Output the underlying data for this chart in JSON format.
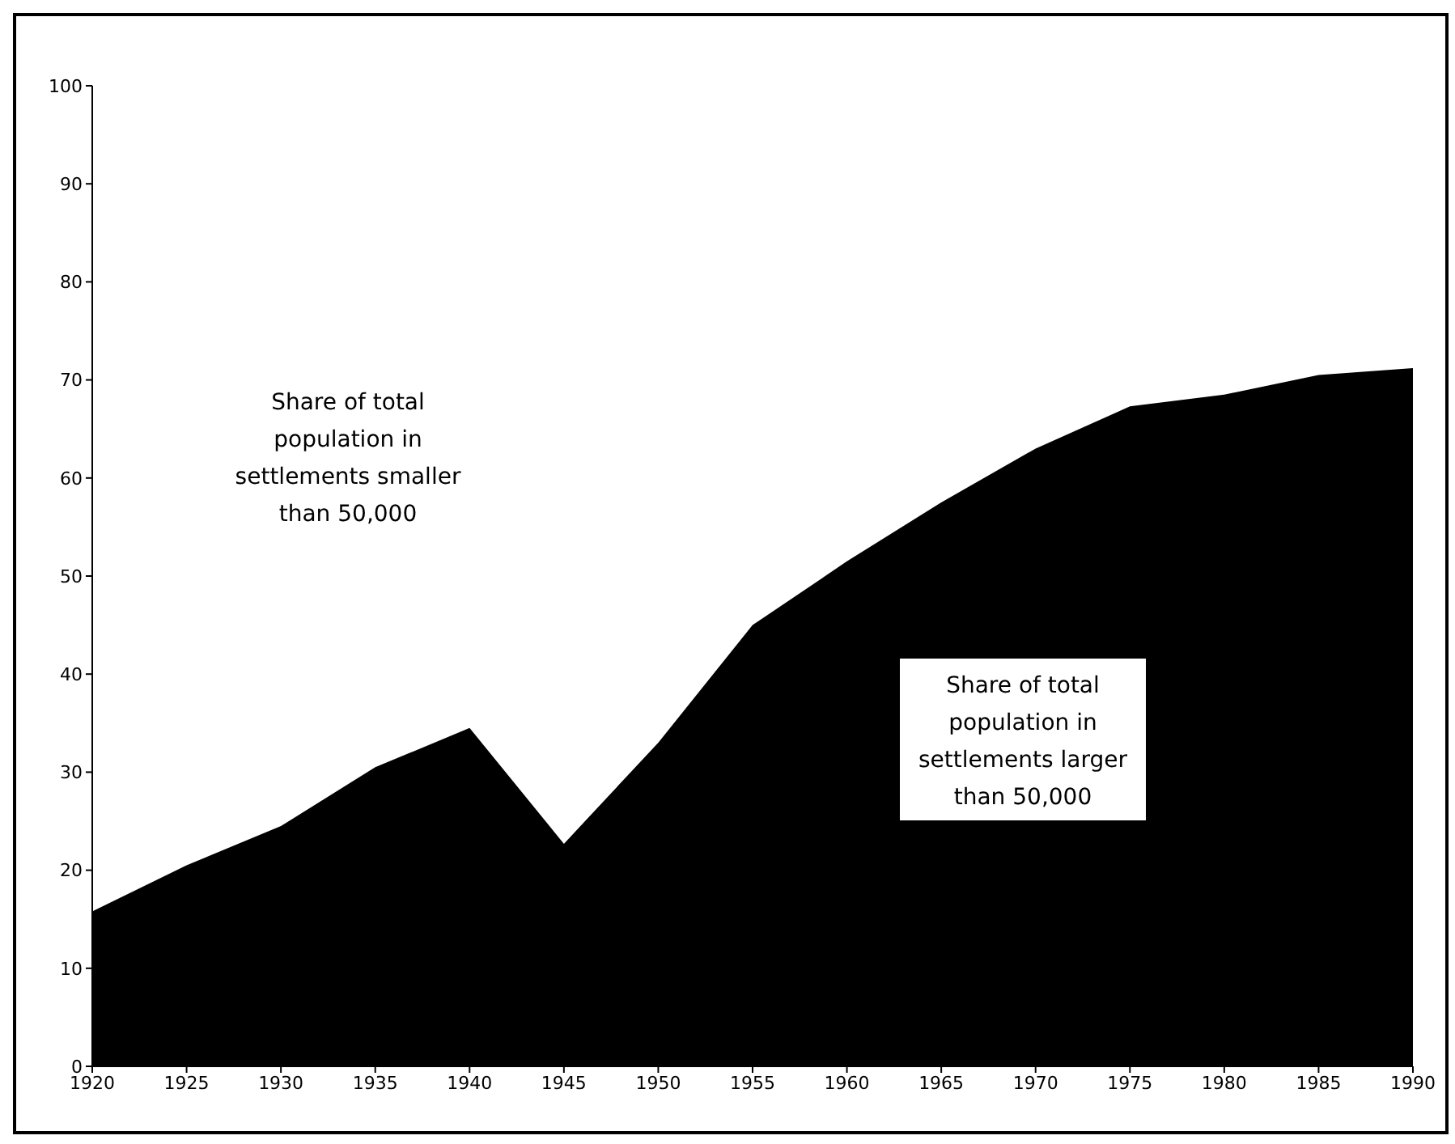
{
  "chart_data": {
    "type": "area",
    "x": [
      1920,
      1925,
      1930,
      1935,
      1940,
      1945,
      1950,
      1955,
      1960,
      1965,
      1970,
      1975,
      1980,
      1985,
      1990
    ],
    "series": [
      {
        "color": "#000000",
        "values": [
          15.8,
          20.5,
          24.5,
          30.5,
          34.5,
          22.7,
          33,
          45,
          51.5,
          57.5,
          63,
          67.3,
          68.5,
          70.5,
          71.2
        ]
      }
    ],
    "xlim": [
      1920,
      1990
    ],
    "xticks": [
      1920,
      1925,
      1930,
      1935,
      1940,
      1945,
      1950,
      1955,
      1960,
      1965,
      1970,
      1975,
      1980,
      1985,
      1990
    ],
    "ylim": [
      0,
      100
    ],
    "yticks": [
      0,
      10,
      20,
      30,
      40,
      50,
      60,
      70,
      80,
      90,
      100
    ],
    "grid": false,
    "legend": false,
    "annotations": [
      "Share of total\npopulation in\nsettlements smaller\nthan 50,000",
      "Share of total\npopulation in\nsettlements larger\nthan 50,000"
    ]
  }
}
